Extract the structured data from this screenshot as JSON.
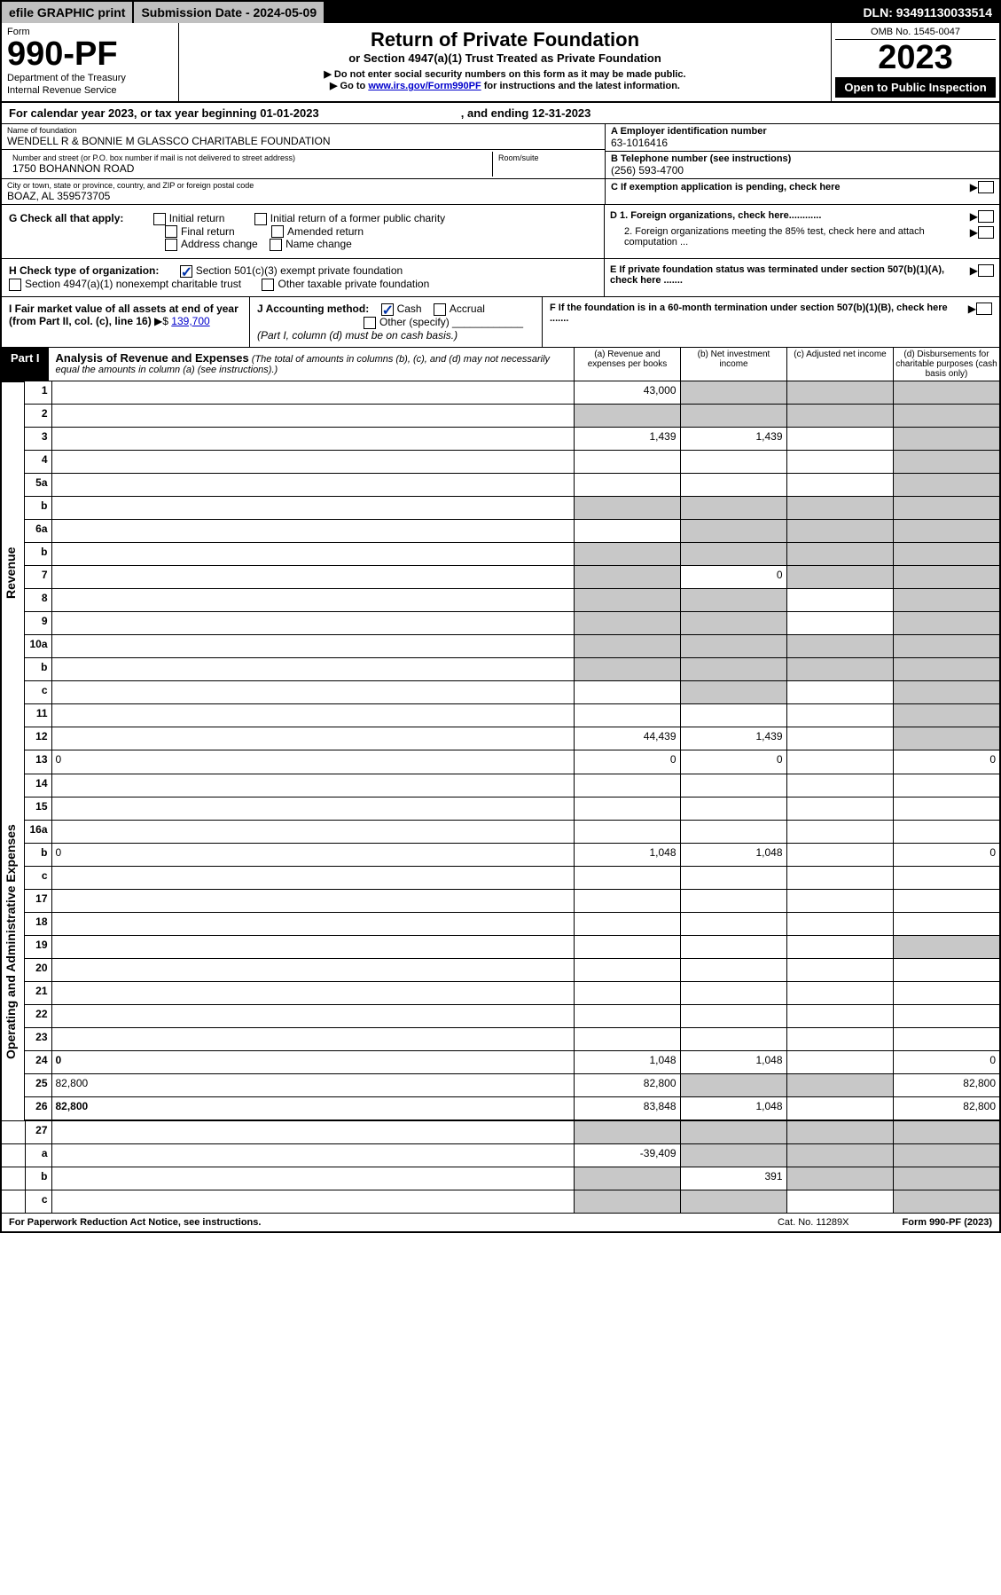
{
  "topbar": {
    "efile": "efile GRAPHIC print",
    "subdate_label": "Submission Date - 2024-05-09",
    "dln": "DLN: 93491130033514"
  },
  "header": {
    "form_label": "Form",
    "form_no": "990-PF",
    "dept1": "Department of the Treasury",
    "dept2": "Internal Revenue Service",
    "title": "Return of Private Foundation",
    "subtitle": "or Section 4947(a)(1) Trust Treated as Private Foundation",
    "note1": "▶ Do not enter social security numbers on this form as it may be made public.",
    "note2_pre": "▶ Go to ",
    "note2_link": "www.irs.gov/Form990PF",
    "note2_post": " for instructions and the latest information.",
    "omb": "OMB No. 1545-0047",
    "year": "2023",
    "open": "Open to Public Inspection"
  },
  "calyear": {
    "pre": "For calendar year 2023, or tax year beginning 01-01-2023",
    "post": ", and ending 12-31-2023"
  },
  "id": {
    "name_lbl": "Name of foundation",
    "name_val": "WENDELL R & BONNIE M GLASSCO CHARITABLE FOUNDATION",
    "addr_lbl": "Number and street (or P.O. box number if mail is not delivered to street address)",
    "addr_val": "1750 BOHANNON ROAD",
    "room_lbl": "Room/suite",
    "city_lbl": "City or town, state or province, country, and ZIP or foreign postal code",
    "city_val": "BOAZ, AL 359573705",
    "a_lbl": "A Employer identification number",
    "a_val": "63-1016416",
    "b_lbl": "B Telephone number (see instructions)",
    "b_val": "(256) 593-4700",
    "c_lbl": "C If exemption application is pending, check here",
    "d1_lbl": "D 1. Foreign organizations, check here............",
    "d2_lbl": "2. Foreign organizations meeting the 85% test, check here and attach computation ...",
    "e_lbl": "E  If private foundation status was terminated under section 507(b)(1)(A), check here .......",
    "f_lbl": "F  If the foundation is in a 60-month termination under section 507(b)(1)(B), check here ......."
  },
  "g": {
    "label": "G Check all that apply:",
    "opts": [
      "Initial return",
      "Final return",
      "Address change",
      "Initial return of a former public charity",
      "Amended return",
      "Name change"
    ]
  },
  "h": {
    "label": "H Check type of organization:",
    "opt1": "Section 501(c)(3) exempt private foundation",
    "opt2": "Section 4947(a)(1) nonexempt charitable trust",
    "opt3": "Other taxable private foundation"
  },
  "i": {
    "label": "I Fair market value of all assets at end of year (from Part II, col. (c), line 16)",
    "arrow": "▶$",
    "val": "139,700"
  },
  "j": {
    "label": "J Accounting method:",
    "cash": "Cash",
    "accrual": "Accrual",
    "other": "Other (specify)",
    "note": "(Part I, column (d) must be on cash basis.)"
  },
  "part1": {
    "label": "Part I",
    "title": "Analysis of Revenue and Expenses",
    "note": " (The total of amounts in columns (b), (c), and (d) may not necessarily equal the amounts in column (a) (see instructions).)",
    "col_a": "(a)   Revenue and expenses per books",
    "col_b": "(b)   Net investment income",
    "col_c": "(c)   Adjusted net income",
    "col_d": "(d)   Disbursements for charitable purposes (cash basis only)"
  },
  "side": {
    "revenue": "Revenue",
    "opex": "Operating and Administrative Expenses"
  },
  "rows": [
    {
      "n": "1",
      "d": "",
      "a": "43,000",
      "b": "",
      "c": "",
      "bs": true,
      "cs": true,
      "ds": true
    },
    {
      "n": "2",
      "d": "",
      "a": "",
      "b": "",
      "c": "",
      "as": true,
      "bs": true,
      "cs": true,
      "ds": true
    },
    {
      "n": "3",
      "d": "",
      "a": "1,439",
      "b": "1,439",
      "c": "",
      "ds": true
    },
    {
      "n": "4",
      "d": "",
      "a": "",
      "b": "",
      "c": "",
      "ds": true
    },
    {
      "n": "5a",
      "d": "",
      "a": "",
      "b": "",
      "c": "",
      "ds": true
    },
    {
      "n": "b",
      "d": "",
      "a": "",
      "b": "",
      "c": "",
      "as": true,
      "bs": true,
      "cs": true,
      "ds": true
    },
    {
      "n": "6a",
      "d": "",
      "a": "",
      "b": "",
      "c": "",
      "bs": true,
      "cs": true,
      "ds": true
    },
    {
      "n": "b",
      "d": "",
      "a": "",
      "b": "",
      "c": "",
      "as": true,
      "bs": true,
      "cs": true,
      "ds": true
    },
    {
      "n": "7",
      "d": "",
      "a": "",
      "b": "0",
      "c": "",
      "as": true,
      "cs": true,
      "ds": true
    },
    {
      "n": "8",
      "d": "",
      "a": "",
      "b": "",
      "c": "",
      "as": true,
      "bs": true,
      "ds": true
    },
    {
      "n": "9",
      "d": "",
      "a": "",
      "b": "",
      "c": "",
      "as": true,
      "bs": true,
      "ds": true
    },
    {
      "n": "10a",
      "d": "",
      "a": "",
      "b": "",
      "c": "",
      "as": true,
      "bs": true,
      "cs": true,
      "ds": true
    },
    {
      "n": "b",
      "d": "",
      "a": "",
      "b": "",
      "c": "",
      "as": true,
      "bs": true,
      "cs": true,
      "ds": true
    },
    {
      "n": "c",
      "d": "",
      "a": "",
      "b": "",
      "c": "",
      "bs": true,
      "ds": true
    },
    {
      "n": "11",
      "d": "",
      "a": "",
      "b": "",
      "c": "",
      "ds": true
    },
    {
      "n": "12",
      "d": "",
      "a": "44,439",
      "b": "1,439",
      "c": "",
      "bold": true,
      "ds": true
    }
  ],
  "exprows": [
    {
      "n": "13",
      "d": "0",
      "a": "0",
      "b": "0",
      "c": ""
    },
    {
      "n": "14",
      "d": "",
      "a": "",
      "b": "",
      "c": ""
    },
    {
      "n": "15",
      "d": "",
      "a": "",
      "b": "",
      "c": ""
    },
    {
      "n": "16a",
      "d": "",
      "a": "",
      "b": "",
      "c": ""
    },
    {
      "n": "b",
      "d": "0",
      "a": "1,048",
      "b": "1,048",
      "c": ""
    },
    {
      "n": "c",
      "d": "",
      "a": "",
      "b": "",
      "c": ""
    },
    {
      "n": "17",
      "d": "",
      "a": "",
      "b": "",
      "c": ""
    },
    {
      "n": "18",
      "d": "",
      "a": "",
      "b": "",
      "c": ""
    },
    {
      "n": "19",
      "d": "",
      "a": "",
      "b": "",
      "c": "",
      "ds": true
    },
    {
      "n": "20",
      "d": "",
      "a": "",
      "b": "",
      "c": ""
    },
    {
      "n": "21",
      "d": "",
      "a": "",
      "b": "",
      "c": ""
    },
    {
      "n": "22",
      "d": "",
      "a": "",
      "b": "",
      "c": ""
    },
    {
      "n": "23",
      "d": "",
      "a": "",
      "b": "",
      "c": ""
    },
    {
      "n": "24",
      "d": "0",
      "a": "1,048",
      "b": "1,048",
      "c": "",
      "bold": true
    },
    {
      "n": "25",
      "d": "82,800",
      "a": "82,800",
      "b": "",
      "c": "",
      "bs": true,
      "cs": true
    },
    {
      "n": "26",
      "d": "82,800",
      "a": "83,848",
      "b": "1,048",
      "c": "",
      "bold": true
    }
  ],
  "netrows": [
    {
      "n": "27",
      "d": "",
      "a": "",
      "b": "",
      "c": "",
      "as": true,
      "bs": true,
      "cs": true,
      "ds": true
    },
    {
      "n": "a",
      "d": "",
      "a": "-39,409",
      "b": "",
      "c": "",
      "bold": true,
      "bs": true,
      "cs": true,
      "ds": true
    },
    {
      "n": "b",
      "d": "",
      "a": "",
      "b": "391",
      "c": "",
      "bold": true,
      "as": true,
      "cs": true,
      "ds": true
    },
    {
      "n": "c",
      "d": "",
      "a": "",
      "b": "",
      "c": "",
      "bold": true,
      "as": true,
      "bs": true,
      "ds": true
    }
  ],
  "footer": {
    "left": "For Paperwork Reduction Act Notice, see instructions.",
    "cat": "Cat. No. 11289X",
    "right": "Form 990-PF (2023)"
  }
}
